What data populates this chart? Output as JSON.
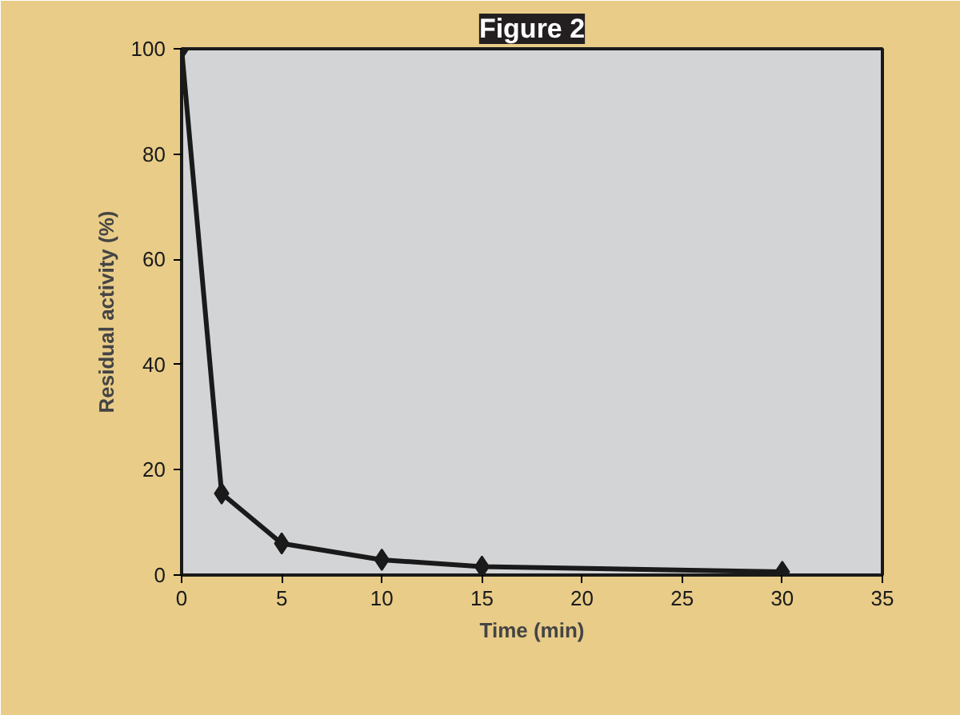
{
  "chart_data": {
    "type": "line",
    "title": "Figure 2",
    "xlabel": "Time (min)",
    "ylabel": "Residual activity (%)",
    "x": [
      0,
      2,
      5,
      10,
      15,
      30
    ],
    "series": [
      {
        "color": "#1a1a1a",
        "values": [
          100,
          15.5,
          6,
          2.9,
          1.6,
          0.6
        ]
      }
    ],
    "xlim": [
      0,
      35
    ],
    "xticks": [
      0,
      5,
      10,
      15,
      20,
      25,
      30,
      35
    ],
    "ylim": [
      0,
      100
    ],
    "yticks": [
      0,
      20,
      40,
      60,
      80,
      100
    ],
    "marker": "diamond",
    "line_style": "solid",
    "grid": false
  }
}
